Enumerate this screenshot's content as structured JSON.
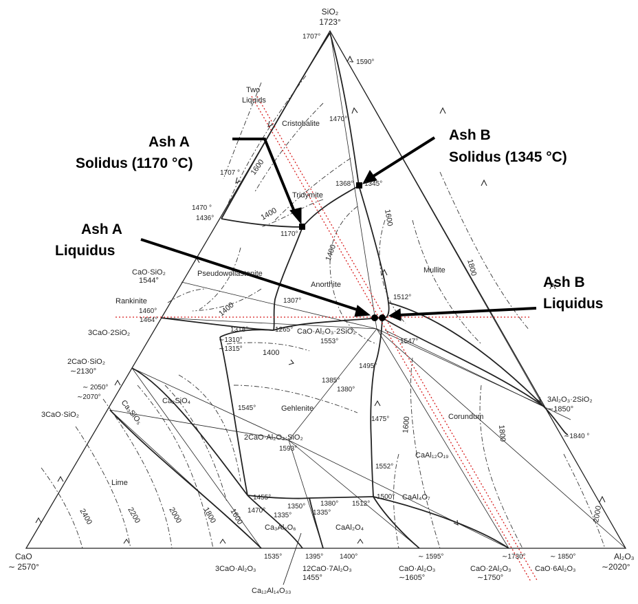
{
  "vertices": {
    "sio2": {
      "name": "SiO₂",
      "temp": "1723°"
    },
    "cao": {
      "name": "CaO",
      "temp": "∼ 2570°"
    },
    "al2o3": {
      "name": "Al₂O₃",
      "temp": "∼2020°"
    }
  },
  "phases": {
    "two_liquids": "Two",
    "two_liquids_2": "Liquids",
    "cristobalite": "Cristobalite",
    "tridymite": "Tridymite",
    "pseudowollastonite": "Pseudowollastonite",
    "anorthite": "Anorthite",
    "mullite": "Mullite",
    "corundum": "Corundum",
    "gehlenite": "Gehlenite",
    "lime": "Lime",
    "rankinite": "Rankinite",
    "ca2sio4": "Ca₂SiO₄",
    "ca3sio5": "Ca₃SiO₅",
    "cao_al2o3_2sio2": "CaO·Al₂O₃·2SiO₂",
    "gehlenite_formula": "2CaO·Al₂O₃·SiO₂",
    "caal12o19": "CaAl₁₂O₁₉",
    "caal4o7": "CaAl₄O₇",
    "caal2o4": "CaAl₂O₄",
    "ca3al2o6": "Ca₃Al₂O₆"
  },
  "compounds": {
    "cao_sio2": "CaO·SiO₂",
    "cao_sio2_t": "1544°",
    "c3s2": "3CaO·2SiO₂",
    "c2s": "2CaO·SiO₂",
    "c2s_t": "∼2130°",
    "c3s": "3CaO·SiO₂",
    "a3s2": "3Al₂O₃·2SiO₂",
    "a3s2_t": "∼1850°",
    "c3a": "3CaO·Al₂O₃",
    "c12a7": "12CaO·7Al₂O₃",
    "c12a7_t": "1455°",
    "ca": "CaO·Al₂O₃",
    "ca_t": "∼1605°",
    "ca2": "CaO·2Al₂O₃",
    "ca2_t": "∼1750°",
    "ca6": "CaO·6Al₂O₃",
    "ca12al14o33": "Ca₁₂Al₁₄O₃₃"
  },
  "points": {
    "t1707a": "1707°",
    "t1590": "∼ 1590°",
    "t1470a": "1470°",
    "t1707b": "1707 °",
    "t1368": "1368°",
    "t1345": "1345°",
    "t1470b": "1470 °",
    "t1436": "1436°",
    "t1170": "1170°",
    "t1307": "1307°",
    "t1512a": "1512°",
    "t1460": "1460°",
    "t1464": "1464°",
    "t1318": "1318°",
    "t1265": "1265°",
    "t1553": "1553°",
    "t1310": "∼1310°",
    "t1315": "∼1315°",
    "t1547": "1547°",
    "t1495": "1495°",
    "t1385": "1385°",
    "t1380a": "1380°",
    "t2050": "∼ 2050°",
    "t2070": "∼2070°",
    "t1545": "1545°",
    "t1593": "1593°",
    "t1475": "1475°",
    "t1840": "∼1840 °",
    "t1552": "1552°",
    "t1455a": "1455°",
    "t1350": "1350°",
    "t1380b": "1380°",
    "t1512b": "1512°",
    "t1500": "1500°",
    "t1470c": "1470°",
    "t1335a": "1335°",
    "t1335b": "1335°",
    "t1535": "1535°",
    "t1395": "1395°",
    "t1400": "1400°",
    "t1595": "∼ 1595°",
    "t1730": "∼1730°",
    "t1850b": "∼ 1850°"
  },
  "isotherms": {
    "i1600a": "1600",
    "i1400a": "1400",
    "i1400b": "1400",
    "i1600b": "1600",
    "i1800a": "1800",
    "i1400c": "1400",
    "i1400d": "1400",
    "i1600c": "1600",
    "i1800b": "1800",
    "i2000a": "2000",
    "i2400": "2400",
    "i2200": "2200",
    "i2000b": "2000",
    "i1800c": "1800",
    "i1600d": "1600"
  },
  "annotations": {
    "ash_a_solidus_1": "Ash A",
    "ash_a_solidus_2": "Solidus (1170 °C)",
    "ash_b_solidus_1": "Ash B",
    "ash_b_solidus_2": "Solidus (1345 °C)",
    "ash_a_liquidus_1": "Ash A",
    "ash_a_liquidus_2": "Liquidus",
    "ash_b_liquidus_1": "Ash B",
    "ash_b_liquidus_2": "Liquidus"
  },
  "colors": {
    "guide": "#d81b1b",
    "ink": "#222222",
    "annotation": "#000000"
  }
}
